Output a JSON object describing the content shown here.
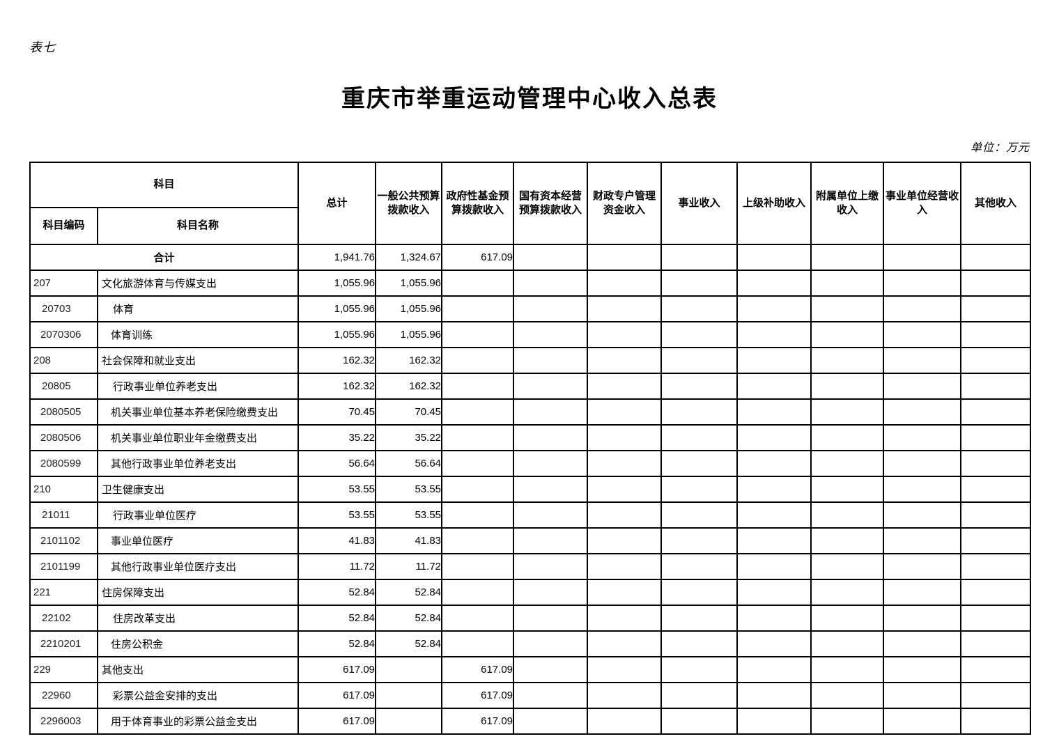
{
  "page": {
    "table_label": "表七",
    "title": "重庆市举重运动管理中心收入总表",
    "unit_label": "单位：万元"
  },
  "table": {
    "header": {
      "subject": "科目",
      "subject_code": "科目编码",
      "subject_name": "科目名称",
      "columns": [
        "总计",
        "一般公共预算拨款收入",
        "政府性基金预算拨款收入",
        "国有资本经营预算拨款收入",
        "财政专户管理资金收入",
        "事业收入",
        "上级补助收入",
        "附属单位上缴收入",
        "事业单位经营收入",
        "其他收入"
      ]
    },
    "rows": [
      {
        "code": "",
        "name": "合计",
        "level": 0,
        "total": true,
        "values": [
          "1,941.76",
          "1,324.67",
          "617.09",
          "",
          "",
          "",
          "",
          "",
          "",
          ""
        ]
      },
      {
        "code": "207",
        "name": "文化旅游体育与传媒支出",
        "level": 1,
        "total": false,
        "values": [
          "1,055.96",
          "1,055.96",
          "",
          "",
          "",
          "",
          "",
          "",
          "",
          ""
        ]
      },
      {
        "code": "20703",
        "name": "体育",
        "level": 2,
        "total": false,
        "values": [
          "1,055.96",
          "1,055.96",
          "",
          "",
          "",
          "",
          "",
          "",
          "",
          ""
        ]
      },
      {
        "code": "2070306",
        "name": "体育训练",
        "level": 3,
        "total": false,
        "values": [
          "1,055.96",
          "1,055.96",
          "",
          "",
          "",
          "",
          "",
          "",
          "",
          ""
        ]
      },
      {
        "code": "208",
        "name": "社会保障和就业支出",
        "level": 1,
        "total": false,
        "values": [
          "162.32",
          "162.32",
          "",
          "",
          "",
          "",
          "",
          "",
          "",
          ""
        ]
      },
      {
        "code": "20805",
        "name": "行政事业单位养老支出",
        "level": 2,
        "total": false,
        "values": [
          "162.32",
          "162.32",
          "",
          "",
          "",
          "",
          "",
          "",
          "",
          ""
        ]
      },
      {
        "code": "2080505",
        "name": "机关事业单位基本养老保险缴费支出",
        "level": 3,
        "total": false,
        "values": [
          "70.45",
          "70.45",
          "",
          "",
          "",
          "",
          "",
          "",
          "",
          ""
        ]
      },
      {
        "code": "2080506",
        "name": "机关事业单位职业年金缴费支出",
        "level": 3,
        "total": false,
        "values": [
          "35.22",
          "35.22",
          "",
          "",
          "",
          "",
          "",
          "",
          "",
          ""
        ]
      },
      {
        "code": "2080599",
        "name": "其他行政事业单位养老支出",
        "level": 3,
        "total": false,
        "values": [
          "56.64",
          "56.64",
          "",
          "",
          "",
          "",
          "",
          "",
          "",
          ""
        ]
      },
      {
        "code": "210",
        "name": "卫生健康支出",
        "level": 1,
        "total": false,
        "values": [
          "53.55",
          "53.55",
          "",
          "",
          "",
          "",
          "",
          "",
          "",
          ""
        ]
      },
      {
        "code": "21011",
        "name": "行政事业单位医疗",
        "level": 2,
        "total": false,
        "values": [
          "53.55",
          "53.55",
          "",
          "",
          "",
          "",
          "",
          "",
          "",
          ""
        ]
      },
      {
        "code": "2101102",
        "name": "事业单位医疗",
        "level": 3,
        "total": false,
        "values": [
          "41.83",
          "41.83",
          "",
          "",
          "",
          "",
          "",
          "",
          "",
          ""
        ]
      },
      {
        "code": "2101199",
        "name": "其他行政事业单位医疗支出",
        "level": 3,
        "total": false,
        "values": [
          "11.72",
          "11.72",
          "",
          "",
          "",
          "",
          "",
          "",
          "",
          ""
        ]
      },
      {
        "code": "221",
        "name": "住房保障支出",
        "level": 1,
        "total": false,
        "values": [
          "52.84",
          "52.84",
          "",
          "",
          "",
          "",
          "",
          "",
          "",
          ""
        ]
      },
      {
        "code": "22102",
        "name": "住房改革支出",
        "level": 2,
        "total": false,
        "values": [
          "52.84",
          "52.84",
          "",
          "",
          "",
          "",
          "",
          "",
          "",
          ""
        ]
      },
      {
        "code": "2210201",
        "name": "住房公积金",
        "level": 3,
        "total": false,
        "values": [
          "52.84",
          "52.84",
          "",
          "",
          "",
          "",
          "",
          "",
          "",
          ""
        ]
      },
      {
        "code": "229",
        "name": "其他支出",
        "level": 1,
        "total": false,
        "values": [
          "617.09",
          "",
          "617.09",
          "",
          "",
          "",
          "",
          "",
          "",
          ""
        ]
      },
      {
        "code": "22960",
        "name": "彩票公益金安排的支出",
        "level": 2,
        "total": false,
        "values": [
          "617.09",
          "",
          "617.09",
          "",
          "",
          "",
          "",
          "",
          "",
          ""
        ]
      },
      {
        "code": "2296003",
        "name": "用于体育事业的彩票公益金支出",
        "level": 3,
        "total": false,
        "values": [
          "617.09",
          "",
          "617.09",
          "",
          "",
          "",
          "",
          "",
          "",
          ""
        ]
      }
    ]
  }
}
